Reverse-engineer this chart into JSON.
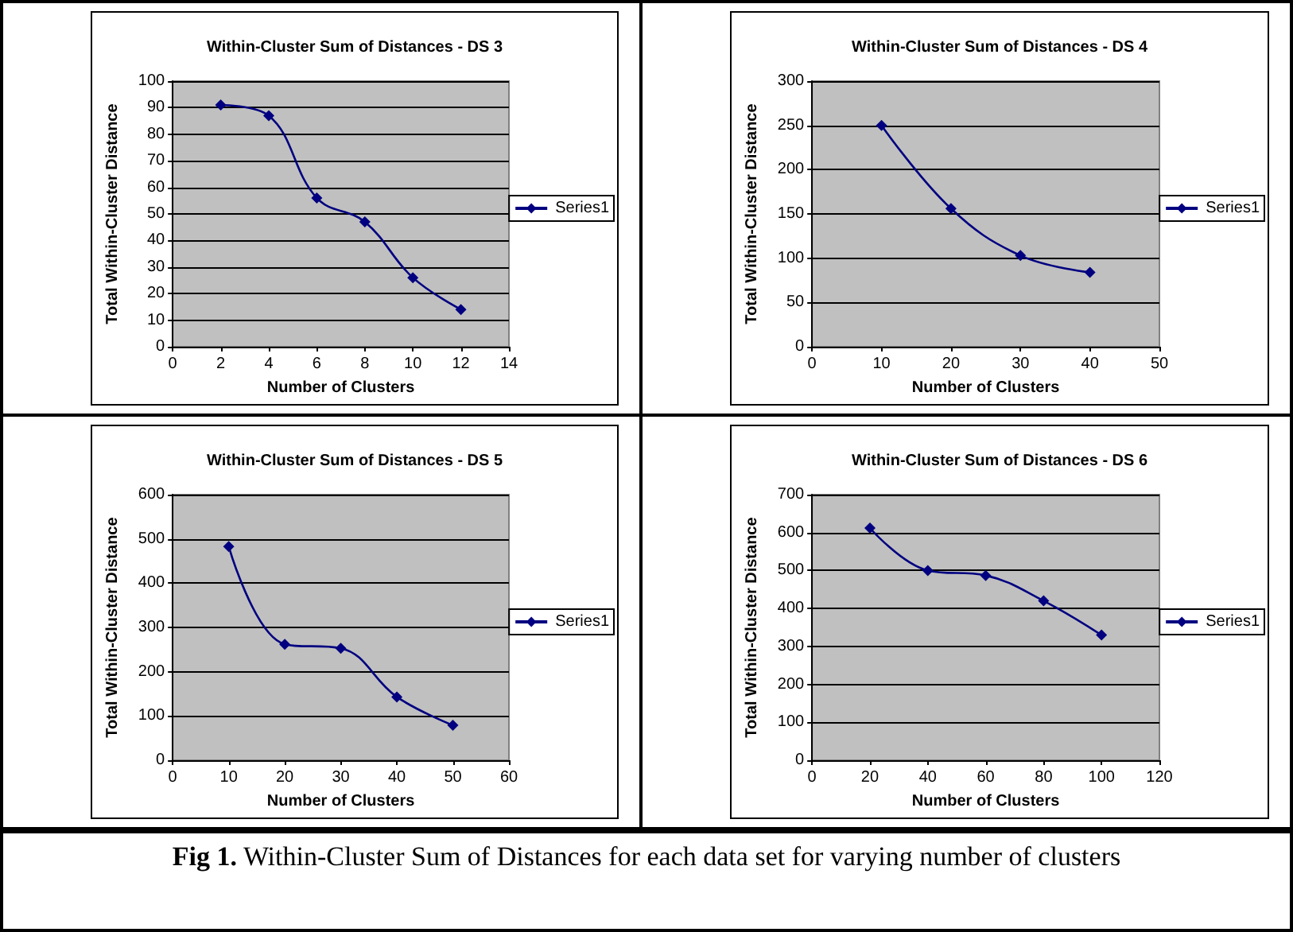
{
  "chart_data": [
    {
      "type": "line",
      "title": "Within-Cluster Sum of Distances - DS 3",
      "xlabel": "Number of Clusters",
      "ylabel": "Total Within-Cluster Distance",
      "x": [
        2,
        4,
        6,
        8,
        10,
        12
      ],
      "series": [
        {
          "name": "Series1",
          "color": "#000080",
          "values": [
            91,
            87,
            56,
            47,
            26,
            14
          ]
        }
      ],
      "xlim": [
        0,
        14
      ],
      "xticks": [
        0,
        2,
        4,
        6,
        8,
        10,
        12,
        14
      ],
      "ylim": [
        0,
        100
      ],
      "yticks": [
        0,
        10,
        20,
        30,
        40,
        50,
        60,
        70,
        80,
        90,
        100
      ],
      "grid": "y",
      "legend": "right",
      "marker": "diamond"
    },
    {
      "type": "line",
      "title": "Within-Cluster Sum of Distances - DS 4",
      "xlabel": "Number of Clusters",
      "ylabel": "Total Within-Cluster Distance",
      "x": [
        10,
        20,
        30,
        40
      ],
      "series": [
        {
          "name": "Series1",
          "color": "#000080",
          "values": [
            250,
            156,
            103,
            84
          ]
        }
      ],
      "xlim": [
        0,
        50
      ],
      "xticks": [
        0,
        10,
        20,
        30,
        40,
        50
      ],
      "ylim": [
        0,
        300
      ],
      "yticks": [
        0,
        50,
        100,
        150,
        200,
        250,
        300
      ],
      "grid": "y",
      "legend": "right",
      "marker": "diamond"
    },
    {
      "type": "line",
      "title": "Within-Cluster Sum of Distances - DS 5",
      "xlabel": "Number of Clusters",
      "ylabel": "Total Within-Cluster Distance",
      "x": [
        10,
        20,
        30,
        40,
        50
      ],
      "series": [
        {
          "name": "Series1",
          "color": "#000080",
          "values": [
            483,
            262,
            253,
            143,
            79
          ]
        }
      ],
      "xlim": [
        0,
        60
      ],
      "xticks": [
        0,
        10,
        20,
        30,
        40,
        50,
        60
      ],
      "ylim": [
        0,
        600
      ],
      "yticks": [
        0,
        100,
        200,
        300,
        400,
        500,
        600
      ],
      "grid": "y",
      "legend": "right",
      "marker": "diamond"
    },
    {
      "type": "line",
      "title": "Within-Cluster Sum of Distances - DS 6",
      "xlabel": "Number of Clusters",
      "ylabel": "Total Within-Cluster Distance",
      "x": [
        20,
        40,
        60,
        80,
        100
      ],
      "series": [
        {
          "name": "Series1",
          "color": "#000080",
          "values": [
            612,
            500,
            487,
            420,
            330
          ]
        }
      ],
      "xlim": [
        0,
        120
      ],
      "xticks": [
        0,
        20,
        40,
        60,
        80,
        100,
        120
      ],
      "ylim": [
        0,
        700
      ],
      "yticks": [
        0,
        100,
        200,
        300,
        400,
        500,
        600,
        700
      ],
      "grid": "y",
      "legend": "right",
      "marker": "diamond"
    },
    {
      "type": "other",
      "annotations": [
        "Fig 1.",
        "Within-Cluster Sum of Distances for each data set for varying number of clusters"
      ]
    }
  ]
}
